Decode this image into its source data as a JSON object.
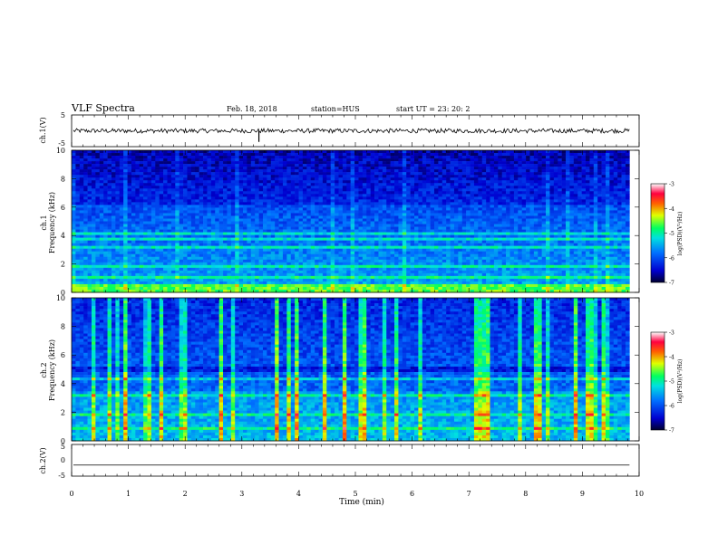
{
  "header": {
    "title": "VLF Spectra",
    "date": "Feb. 18, 2018",
    "station": "station=HUS",
    "start": "start UT =  23: 20: 2"
  },
  "chart_data": [
    {
      "type": "line",
      "name": "waveform-ch1",
      "ylabel": "ch.1(V)",
      "ylim": [
        -5,
        5
      ],
      "yticks": [
        "5",
        "-5"
      ],
      "level": 0,
      "spike_time_min": 3.3
    },
    {
      "type": "heatmap",
      "name": "spectrogram-ch1",
      "ylabel": "Frequency (kHz)",
      "ylabel_prefix": "ch.1",
      "ylim": [
        0,
        10
      ],
      "yticks": [
        "0",
        "2",
        "4",
        "6",
        "8",
        "10"
      ],
      "colorbar": {
        "label": "log(PSD)(V²/Hz)",
        "range": [
          -7,
          -3
        ],
        "ticks": [
          "-3",
          "-4",
          "-5",
          "-6",
          "-7"
        ]
      }
    },
    {
      "type": "heatmap",
      "name": "spectrogram-ch2",
      "ylabel": "Frequency (kHz)",
      "ylabel_prefix": "ch.2",
      "ylim": [
        0,
        10
      ],
      "yticks": [
        "0",
        "2",
        "4",
        "6",
        "8",
        "10"
      ],
      "colorbar": {
        "label": "log(PSD)(V²/Hz)",
        "range": [
          -7,
          -3
        ],
        "ticks": [
          "-3",
          "-4",
          "-5",
          "-6",
          "-7"
        ]
      }
    },
    {
      "type": "line",
      "name": "waveform-ch2",
      "ylabel": "ch.2(V)",
      "ylim": [
        -5,
        5
      ],
      "yticks": [
        "5",
        "0",
        "-5"
      ],
      "level": -1.5
    }
  ],
  "xaxis": {
    "label": "Time (min)",
    "range": [
      0,
      10
    ],
    "data_end": 9.83,
    "ticks": [
      "0",
      "1",
      "2",
      "3",
      "4",
      "5",
      "6",
      "7",
      "8",
      "9",
      "10"
    ]
  },
  "colors": {
    "axis": "#000000",
    "background": "#ffffff",
    "colormap_low": "#000030",
    "colormap_high": "#ffffff"
  }
}
